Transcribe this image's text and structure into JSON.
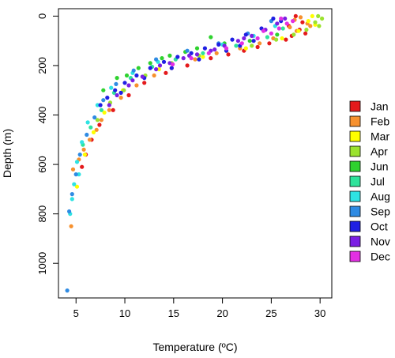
{
  "chart_data": {
    "type": "scatter",
    "xlabel": "Temperature (ºC)",
    "ylabel": "Depth (m)",
    "xlim": [
      3.2,
      31.2
    ],
    "ylim": [
      1140,
      -30
    ],
    "y_reversed": true,
    "x_ticks": [
      5,
      10,
      15,
      20,
      25,
      30
    ],
    "x_tick_labels": [
      "5",
      "10",
      "15",
      "20",
      "25",
      "30"
    ],
    "y_ticks": [
      0,
      200,
      400,
      600,
      800,
      1000
    ],
    "y_tick_labels": [
      "0",
      "200",
      "400",
      "600",
      "800",
      "1000"
    ],
    "grid": false,
    "legend_position": "right",
    "series": [
      {
        "name": "Jan",
        "color": "#e41a1c",
        "x": [
          27.5,
          28.2,
          26.8,
          27.9,
          28.5,
          27.1,
          26.5,
          24.8,
          23.6,
          22.2,
          20.6,
          18.8,
          16.4,
          14.2,
          12.0,
          10.4,
          8.8,
          7.4,
          6.6,
          6.0,
          5.6
        ],
        "y": [
          0,
          25,
          40,
          55,
          70,
          80,
          95,
          110,
          125,
          140,
          155,
          170,
          200,
          230,
          270,
          320,
          380,
          440,
          500,
          560,
          610
        ]
      },
      {
        "name": "Feb",
        "color": "#f7912e",
        "x": [
          28.0,
          27.4,
          28.7,
          26.9,
          27.6,
          29.0,
          25.2,
          23.8,
          21.8,
          19.4,
          17.2,
          14.8,
          13.0,
          11.2,
          9.6,
          8.4,
          7.6,
          7.1,
          6.4,
          5.8,
          5.3,
          4.7,
          4.5
        ],
        "y": [
          5,
          15,
          30,
          45,
          60,
          40,
          90,
          110,
          130,
          150,
          175,
          210,
          240,
          280,
          330,
          380,
          420,
          460,
          500,
          540,
          580,
          620,
          850
        ]
      },
      {
        "name": "Mar",
        "color": "#ffff00",
        "x": [
          29.2,
          28.8,
          29.5,
          27.8,
          26.1,
          22.4,
          18.0,
          13.5,
          9.8,
          7.9,
          6.8,
          5.9,
          5.1
        ],
        "y": [
          0,
          20,
          35,
          60,
          90,
          130,
          165,
          215,
          300,
          390,
          470,
          560,
          690
        ]
      },
      {
        "name": "Apr",
        "color": "#9be32f",
        "x": [
          29.8,
          30.2,
          29.5,
          29.9,
          28.6,
          27.3,
          25.5,
          23.0,
          20.4,
          17.6,
          14.8,
          12.1,
          9.9,
          8.5,
          7.2
        ],
        "y": [
          0,
          10,
          25,
          40,
          55,
          75,
          95,
          120,
          140,
          160,
          190,
          240,
          300,
          350,
          420
        ]
      },
      {
        "name": "Jun",
        "color": "#2fd22f",
        "x": [
          18.8,
          16.2,
          13.8,
          11.4,
          9.2,
          7.8,
          14.6,
          17.4,
          20.2,
          22.8,
          25.6,
          12.6,
          10.2
        ],
        "y": [
          85,
          145,
          170,
          210,
          250,
          300,
          160,
          130,
          110,
          100,
          75,
          190,
          240
        ]
      },
      {
        "name": "Jul",
        "color": "#2fe39b",
        "x": [
          26.2,
          24.6,
          21.4,
          18.0,
          15.2,
          12.8,
          10.6,
          8.9,
          7.6,
          6.5,
          5.7
        ],
        "y": [
          50,
          85,
          120,
          150,
          175,
          205,
          250,
          310,
          380,
          450,
          520
        ]
      },
      {
        "name": "Aug",
        "color": "#2fe3e3",
        "x": [
          25.4,
          23.2,
          20.0,
          16.8,
          13.4,
          10.8,
          8.6,
          7.2,
          6.2,
          5.6,
          5.1,
          4.8,
          4.6,
          4.4,
          5.3
        ],
        "y": [
          40,
          80,
          115,
          150,
          185,
          230,
          290,
          360,
          430,
          510,
          590,
          680,
          740,
          800,
          640
        ]
      },
      {
        "name": "Sep",
        "color": "#2f8be3",
        "x": [
          25.0,
          22.6,
          19.6,
          16.4,
          13.2,
          10.9,
          9.1,
          7.8,
          6.9,
          6.1,
          5.4,
          5.0,
          4.6,
          4.3,
          4.1
        ],
        "y": [
          20,
          70,
          110,
          140,
          175,
          220,
          275,
          340,
          410,
          480,
          560,
          640,
          720,
          790,
          1110
        ]
      },
      {
        "name": "Oct",
        "color": "#1f1fe3",
        "x": [
          25.2,
          24.0,
          22.4,
          21.0,
          19.6,
          18.2,
          16.8,
          15.4,
          14.0,
          12.6,
          11.2,
          10.0,
          9.0,
          8.2,
          7.5,
          23.2,
          20.4,
          17.6,
          14.8,
          12.0,
          9.6,
          26.0,
          21.8
        ],
        "y": [
          10,
          50,
          75,
          95,
          115,
          130,
          150,
          165,
          185,
          210,
          240,
          270,
          300,
          330,
          360,
          100,
          140,
          175,
          210,
          250,
          310,
          20,
          120
        ]
      },
      {
        "name": "Nov",
        "color": "#7b1fe3",
        "x": [
          25.6,
          24.4,
          23.0,
          21.6,
          20.2,
          18.8,
          17.4,
          16.0,
          14.6,
          13.2,
          11.8,
          10.4,
          9.2,
          8.4,
          22.2,
          19.2,
          16.6,
          13.6,
          10.8,
          26.4
        ],
        "y": [
          30,
          55,
          80,
          100,
          120,
          140,
          155,
          170,
          190,
          215,
          245,
          280,
          320,
          360,
          90,
          135,
          160,
          200,
          260,
          10
        ]
      },
      {
        "name": "Dec",
        "color": "#e32fe3",
        "x": [
          26.6,
          25.8,
          27.2,
          25.0,
          23.6,
          22.0,
          20.4,
          18.6,
          16.8,
          14.9,
          26.0,
          24.2
        ],
        "y": [
          30,
          50,
          20,
          70,
          90,
          110,
          130,
          150,
          170,
          195,
          10,
          60
        ]
      }
    ]
  }
}
